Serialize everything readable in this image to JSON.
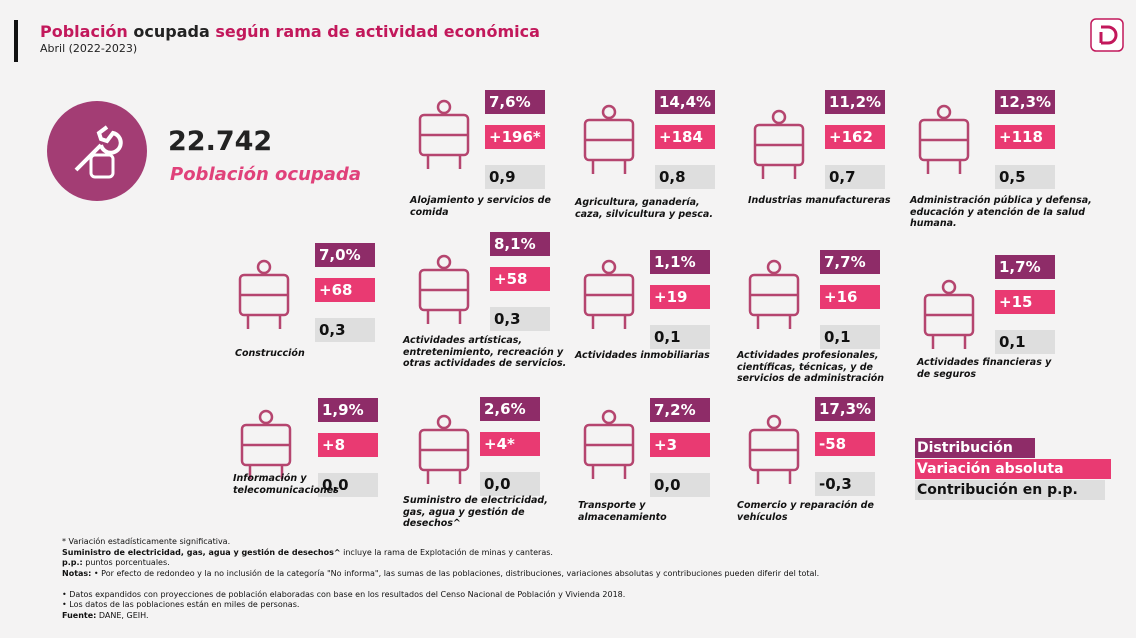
{
  "header": {
    "title": [
      "Población",
      "ocupada",
      "según rama de actividad económica"
    ],
    "subtitle": "Abril (2022-2023)"
  },
  "summary": {
    "value": "22.742",
    "label": "Población ocupada"
  },
  "sectors": [
    {
      "label": "Alojamiento y servicios de comida",
      "distribution": "7,6%",
      "variation": "+196*",
      "contribution": "0,9"
    },
    {
      "label": "Agricultura, ganadería, caza, silvicultura y pesca.",
      "distribution": "14,4%",
      "variation": "+184",
      "contribution": "0,8"
    },
    {
      "label": "Industrias manufactureras",
      "distribution": "11,2%",
      "variation": "+162",
      "contribution": "0,7"
    },
    {
      "label": "Administración pública y defensa, educación y atención de la salud humana.",
      "distribution": "12,3%",
      "variation": "+118",
      "contribution": "0,5"
    },
    {
      "label": "Construcción",
      "distribution": "7,0%",
      "variation": "+68",
      "contribution": "0,3"
    },
    {
      "label": "Actividades artísticas, entretenimiento, recreación y otras actividades de servicios.",
      "distribution": "8,1%",
      "variation": "+58",
      "contribution": "0,3"
    },
    {
      "label": "Actividades inmobiliarias",
      "distribution": "1,1%",
      "variation": "+19",
      "contribution": "0,1"
    },
    {
      "label": "Actividades profesionales, científicas, técnicas, y de servicios de administración",
      "distribution": "7,7%",
      "variation": "+16",
      "contribution": "0,1"
    },
    {
      "label": "Actividades financieras y de seguros",
      "distribution": "1,7%",
      "variation": "+15",
      "contribution": "0,1"
    },
    {
      "label": "Información y telecomunicaciones",
      "distribution": "1,9%",
      "variation": "+8",
      "contribution": "0,0"
    },
    {
      "label": "Suministro de electricidad, gas, agua y gestión de desechos^",
      "distribution": "2,6%",
      "variation": "+4*",
      "contribution": "0,0"
    },
    {
      "label": "Transporte y almacenamiento",
      "distribution": "7,2%",
      "variation": "+3",
      "contribution": "0,0"
    },
    {
      "label": "Comercio y reparación de vehículos",
      "distribution": "17,3%",
      "variation": "-58",
      "contribution": "-0,3"
    }
  ],
  "legend": [
    "Distribución",
    "Variación absoluta",
    "Contribución en p.p."
  ],
  "footnotes": [
    {
      "text": "* Variación estadísticamente significativa."
    },
    {
      "bold": "Suministro de electricidad, gas, agua y gestión de desechos^",
      "text": " incluye la rama de Explotación de minas y canteras."
    },
    {
      "bold": "p.p.:",
      "text": " puntos porcentuales."
    },
    {
      "bold": "Notas:",
      "text": " • Por efecto de redondeo y la no inclusión de la categoría \"No informa\", las sumas de las poblaciones, distribuciones, variaciones absolutas y contribuciones pueden diferir del total."
    },
    {
      "text": "• Datos expandidos con proyecciones de población elaboradas con base en los resultados del Censo Nacional de Población y Vivienda 2018."
    },
    {
      "text": "• Los datos de las poblaciones están en miles de personas."
    },
    {
      "bold": "Fuente:",
      "text": " DANE, GEIH."
    }
  ]
}
